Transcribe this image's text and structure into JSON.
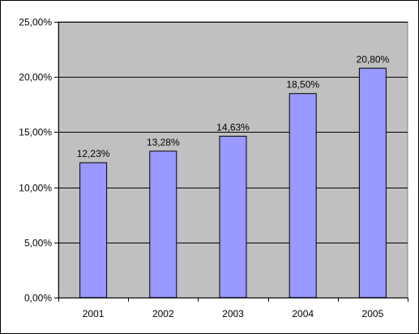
{
  "chart_data": {
    "type": "bar",
    "categories": [
      "2001",
      "2002",
      "2003",
      "2004",
      "2005"
    ],
    "values": [
      12.23,
      13.28,
      14.63,
      18.5,
      20.8
    ],
    "data_labels": [
      "12,23%",
      "13,28%",
      "14,63%",
      "18,50%",
      "20,80%"
    ],
    "y_ticks": [
      0,
      5,
      10,
      15,
      20,
      25
    ],
    "y_tick_labels": [
      "0,00%",
      "5,00%",
      "10,00%",
      "15,00%",
      "20,00%",
      "25,00%"
    ],
    "ylim": [
      0,
      25
    ],
    "grid": true,
    "legend": "none",
    "title": "",
    "xlabel": "",
    "ylabel": "",
    "colors": {
      "bar": "#9999ff",
      "plot_background": "#c0c0c0",
      "gridline": "#000000"
    }
  }
}
